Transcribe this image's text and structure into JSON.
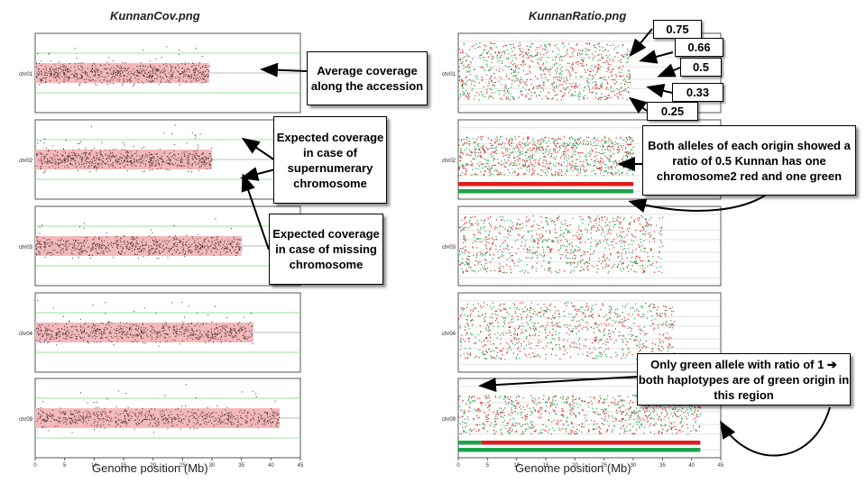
{
  "left_title": "KunnanCov.png",
  "right_title": "KunnanRatio.png",
  "x_axis_label": "Genome position (Mb)",
  "x_ticks": [
    "0",
    "5",
    "10",
    "15",
    "20",
    "25",
    "30",
    "35",
    "40",
    "45"
  ],
  "chromosomes": [
    "chr01",
    "chr02",
    "chr03",
    "chr04",
    "chr09"
  ],
  "callouts": {
    "average": "Average coverage along the accession",
    "supernumerary": "Expected coverage in case of supernumerary chromosome",
    "missing": "Expected coverage in case of missing chromosome",
    "both_alleles": "Both alleles of each origin showed a ratio of 0.5 Kunnan has one chromosome2 red and one green",
    "only_green": "Only green allele with ratio of 1 ➔ both haplotypes are of green origin in this region"
  },
  "ratio_labels": [
    "0.75",
    "0.66",
    "0.5",
    "0.33",
    "0.25"
  ],
  "colors": {
    "red": "#e31a1c",
    "green": "#1aa34a",
    "pink_band": "#f4b8bb",
    "grid_green": "#9be39b",
    "dot_dark": "#3a2a2a"
  },
  "coverage_panels": [
    {
      "chr": "chr01",
      "length_mb": 29.5
    },
    {
      "chr": "chr02",
      "length_mb": 30
    },
    {
      "chr": "chr03",
      "length_mb": 35
    },
    {
      "chr": "chr04",
      "length_mb": 37
    },
    {
      "chr": "chr09",
      "length_mb": 41.5
    }
  ],
  "ratio_panels": [
    {
      "chr": "chr01",
      "length_mb": 29.5
    },
    {
      "chr": "chr02",
      "length_mb": 30,
      "haplotype_bars": [
        {
          "color": "red",
          "start_mb": 0,
          "end_mb": 30
        },
        {
          "color": "green",
          "start_mb": 0,
          "end_mb": 30
        }
      ]
    },
    {
      "chr": "chr03",
      "length_mb": 35
    },
    {
      "chr": "chr04",
      "length_mb": 37
    },
    {
      "chr": "chr09",
      "length_mb": 41.5,
      "haplotype_bars": [
        {
          "color": "green",
          "start_mb": 0,
          "end_mb": 4
        },
        {
          "color": "red",
          "start_mb": 4,
          "end_mb": 41.5
        },
        {
          "color": "green",
          "start_mb": 0,
          "end_mb": 41.5
        }
      ]
    }
  ]
}
